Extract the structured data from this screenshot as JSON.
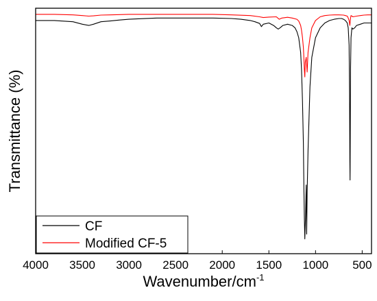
{
  "chart_data": {
    "type": "line",
    "xlabel": "Wavenumber/cm",
    "xlabel_superscript": "-1",
    "ylabel": "Transmittance (%)",
    "xlim": [
      4000,
      400
    ],
    "x_reversed": true,
    "ylim": [
      0,
      100
    ],
    "y_ticks_labeled": false,
    "x_ticks": [
      4000,
      3500,
      3000,
      2500,
      2000,
      1500,
      1000,
      500
    ],
    "x_tick_labels": [
      "4000",
      "3500",
      "3000",
      "2500",
      "2000",
      "1500",
      "1000",
      "500"
    ],
    "grid": false,
    "legend_position": "bottom-left",
    "series": [
      {
        "name": "CF",
        "color": "#000000",
        "x": [
          4000,
          3800,
          3600,
          3500,
          3430,
          3380,
          3300,
          3200,
          3100,
          3000,
          2900,
          2700,
          2500,
          2300,
          2100,
          1900,
          1800,
          1700,
          1650,
          1600,
          1580,
          1560,
          1500,
          1450,
          1420,
          1400,
          1380,
          1350,
          1300,
          1250,
          1220,
          1200,
          1180,
          1160,
          1150,
          1140,
          1130,
          1125,
          1120,
          1115,
          1110,
          1105,
          1100,
          1095,
          1090,
          1080,
          1070,
          1060,
          1040,
          1000,
          950,
          900,
          850,
          800,
          750,
          720,
          700,
          680,
          660,
          650,
          640,
          635,
          632,
          630,
          628,
          625,
          620,
          610,
          600,
          580,
          560,
          520,
          480,
          440,
          400
        ],
        "y": [
          95,
          95,
          94.5,
          93.5,
          93,
          93.5,
          94.5,
          94.8,
          95.2,
          95.5,
          95.7,
          96,
          96,
          96,
          96,
          95.8,
          95.5,
          95,
          94.5,
          93.8,
          92.5,
          93.5,
          94,
          93,
          92,
          91.5,
          92,
          93,
          93.5,
          93,
          92,
          90.5,
          88,
          82,
          75,
          62,
          45,
          28,
          15,
          6,
          12,
          18,
          28,
          8,
          25,
          42,
          55,
          68,
          80,
          88,
          92,
          94,
          95,
          95.5,
          95.8,
          95.8,
          95.5,
          95,
          94,
          92,
          85,
          65,
          38,
          30,
          48,
          75,
          88,
          92,
          91.5,
          92,
          93,
          93.5,
          94,
          94,
          94
        ]
      },
      {
        "name": "Modified CF-5",
        "color": "#ff0000",
        "x": [
          4000,
          3800,
          3600,
          3500,
          3430,
          3380,
          3300,
          3200,
          3000,
          2800,
          2500,
          2300,
          2100,
          1900,
          1700,
          1600,
          1560,
          1500,
          1420,
          1390,
          1360,
          1300,
          1250,
          1200,
          1180,
          1160,
          1150,
          1140,
          1130,
          1125,
          1120,
          1115,
          1110,
          1100,
          1090,
          1080,
          1060,
          1040,
          1000,
          950,
          900,
          850,
          800,
          750,
          700,
          680,
          660,
          650,
          640,
          632,
          625,
          620,
          610,
          600,
          560,
          520,
          480,
          440,
          400
        ],
        "y": [
          97.5,
          97.5,
          97.3,
          97,
          96.8,
          96.9,
          97.2,
          97.3,
          97.5,
          97.5,
          97.5,
          97.5,
          97.5,
          97.3,
          97,
          96.5,
          96.2,
          96.4,
          96.5,
          95.5,
          96,
          96.3,
          96,
          95.5,
          94.8,
          93,
          91,
          88,
          84,
          80,
          75,
          72,
          78,
          80,
          74,
          82,
          88,
          92,
          95,
          96.5,
          97,
          97.2,
          97.3,
          97.3,
          97.2,
          97,
          96.8,
          96,
          95,
          93,
          96,
          97,
          96.8,
          96.5,
          96.8,
          97,
          97.2,
          97.3,
          97.3
        ]
      }
    ]
  }
}
